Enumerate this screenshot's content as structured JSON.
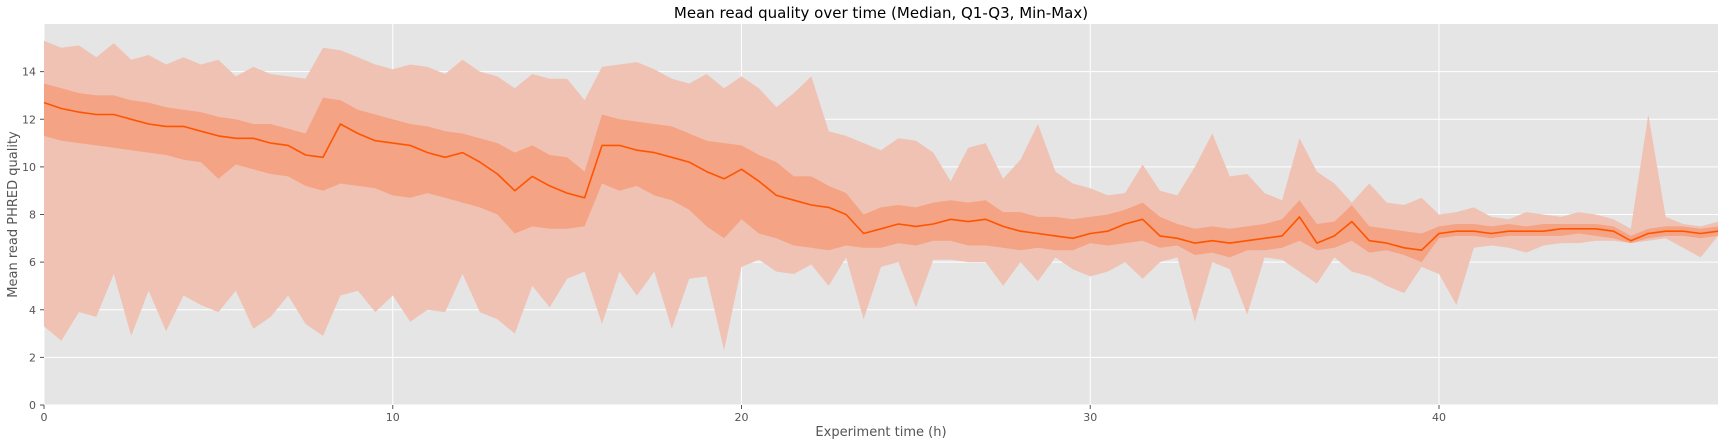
{
  "chart_data": {
    "type": "area",
    "title": "Mean read quality over time (Median, Q1-Q3, Min-Max)",
    "xlabel": "Experiment time (h)",
    "ylabel": "Mean read PHRED quality",
    "xlim": [
      0,
      48
    ],
    "ylim": [
      0,
      16
    ],
    "xticks": [
      0,
      10,
      20,
      30,
      40
    ],
    "yticks": [
      0,
      2,
      4,
      6,
      8,
      10,
      12,
      14
    ],
    "grid": true,
    "background": "#e5e5e5",
    "grid_color": "#ffffff",
    "colors": {
      "median": "#ff5500",
      "iqr_band": "#f4a07e",
      "minmax_band": "#f0c0b0"
    },
    "x": [
      0,
      0.5,
      1,
      1.5,
      2,
      2.5,
      3,
      3.5,
      4,
      4.5,
      5,
      5.5,
      6,
      6.5,
      7,
      7.5,
      8,
      8.5,
      9,
      9.5,
      10,
      10.5,
      11,
      11.5,
      12,
      12.5,
      13,
      13.5,
      14,
      14.5,
      15,
      15.5,
      16,
      16.5,
      17,
      17.5,
      18,
      18.5,
      19,
      19.5,
      20,
      20.5,
      21,
      21.5,
      22,
      22.5,
      23,
      23.5,
      24,
      24.5,
      25,
      25.5,
      26,
      26.5,
      27,
      27.5,
      28,
      28.5,
      29,
      29.5,
      30,
      30.5,
      31,
      31.5,
      32,
      32.5,
      33,
      33.5,
      34,
      34.5,
      35,
      35.5,
      36,
      36.5,
      37,
      37.5,
      38,
      38.5,
      39,
      39.5,
      40,
      40.5,
      41,
      41.5,
      42,
      42.5,
      43,
      43.5,
      44,
      44.5,
      45,
      45.5,
      46,
      46.5,
      47,
      47.5,
      48
    ],
    "series": [
      {
        "name": "Median",
        "values": [
          12.7,
          12.45,
          12.3,
          12.2,
          12.2,
          12.0,
          11.8,
          11.7,
          11.7,
          11.5,
          11.3,
          11.2,
          11.2,
          11.0,
          10.9,
          10.5,
          10.4,
          11.8,
          11.4,
          11.1,
          11.0,
          10.9,
          10.6,
          10.4,
          10.6,
          10.2,
          9.7,
          9.0,
          9.6,
          9.2,
          8.9,
          8.7,
          10.9,
          10.9,
          10.7,
          10.6,
          10.4,
          10.2,
          9.8,
          9.5,
          9.9,
          9.4,
          8.8,
          8.6,
          8.4,
          8.3,
          8.0,
          7.2,
          7.4,
          7.6,
          7.5,
          7.6,
          7.8,
          7.7,
          7.8,
          7.5,
          7.3,
          7.2,
          7.1,
          7.0,
          7.2,
          7.3,
          7.6,
          7.8,
          7.1,
          7.0,
          6.8,
          6.9,
          6.8,
          6.9,
          7.0,
          7.1,
          7.9,
          6.8,
          7.1,
          7.7,
          6.9,
          6.8,
          6.6,
          6.5,
          7.2,
          7.3,
          7.3,
          7.2,
          7.3,
          7.3,
          7.3,
          7.4,
          7.4,
          7.4,
          7.3,
          6.9,
          7.2,
          7.3,
          7.3,
          7.2,
          7.3
        ]
      },
      {
        "name": "Q1",
        "values": [
          11.3,
          11.1,
          11.0,
          10.9,
          10.8,
          10.7,
          10.6,
          10.5,
          10.3,
          10.2,
          9.5,
          10.1,
          9.9,
          9.7,
          9.6,
          9.2,
          9.0,
          9.3,
          9.2,
          9.1,
          8.8,
          8.7,
          8.9,
          8.7,
          8.5,
          8.3,
          8.0,
          7.2,
          7.5,
          7.4,
          7.4,
          7.5,
          9.3,
          9.0,
          9.2,
          8.8,
          8.6,
          8.2,
          7.5,
          7.0,
          7.8,
          7.2,
          7.0,
          6.7,
          6.6,
          6.5,
          6.7,
          6.6,
          6.6,
          6.8,
          6.7,
          6.9,
          6.9,
          6.7,
          6.7,
          6.6,
          6.5,
          6.6,
          6.5,
          6.5,
          6.8,
          6.7,
          6.8,
          6.9,
          6.6,
          6.7,
          6.3,
          6.4,
          6.2,
          6.5,
          6.5,
          6.6,
          6.9,
          6.5,
          6.6,
          6.9,
          6.4,
          6.5,
          6.3,
          6.0,
          7.0,
          7.1,
          7.1,
          7.0,
          7.1,
          7.1,
          7.1,
          7.1,
          7.2,
          7.1,
          7.0,
          6.8,
          7.0,
          7.1,
          7.1,
          7.0,
          7.1
        ]
      },
      {
        "name": "Q3",
        "values": [
          13.5,
          13.3,
          13.1,
          13.0,
          13.0,
          12.8,
          12.7,
          12.5,
          12.4,
          12.3,
          12.1,
          12.0,
          11.8,
          11.8,
          11.6,
          11.4,
          12.9,
          12.8,
          12.4,
          12.2,
          12.0,
          11.8,
          11.7,
          11.5,
          11.4,
          11.2,
          11.0,
          10.6,
          10.9,
          10.5,
          10.4,
          9.8,
          12.2,
          12.0,
          11.9,
          11.8,
          11.7,
          11.4,
          11.1,
          11.0,
          10.9,
          10.5,
          10.2,
          9.6,
          9.6,
          9.2,
          8.9,
          8.0,
          8.3,
          8.4,
          8.3,
          8.5,
          8.6,
          8.5,
          8.6,
          8.1,
          8.1,
          7.9,
          7.9,
          7.8,
          7.9,
          8.0,
          8.2,
          8.5,
          7.9,
          7.6,
          7.4,
          7.5,
          7.4,
          7.5,
          7.6,
          7.8,
          8.6,
          7.6,
          7.7,
          8.4,
          7.5,
          7.4,
          7.3,
          7.2,
          7.5,
          7.6,
          7.6,
          7.5,
          7.6,
          7.5,
          7.6,
          7.6,
          7.6,
          7.6,
          7.5,
          7.1,
          7.4,
          7.5,
          7.5,
          7.4,
          7.5
        ]
      },
      {
        "name": "Min",
        "values": [
          3.3,
          2.7,
          3.9,
          3.7,
          5.5,
          2.9,
          4.8,
          3.1,
          4.6,
          4.2,
          3.9,
          4.8,
          3.2,
          3.7,
          4.6,
          3.4,
          2.9,
          4.6,
          4.8,
          3.9,
          4.6,
          3.5,
          4.0,
          3.9,
          5.5,
          3.9,
          3.6,
          3.0,
          5.0,
          4.1,
          5.3,
          5.6,
          3.4,
          5.6,
          4.6,
          5.6,
          3.2,
          5.3,
          5.4,
          2.3,
          5.8,
          6.1,
          5.6,
          5.5,
          5.9,
          5.0,
          6.2,
          3.6,
          5.8,
          6.0,
          4.1,
          6.1,
          6.1,
          6.0,
          6.0,
          5.0,
          6.0,
          5.2,
          6.2,
          5.7,
          5.4,
          5.6,
          6.0,
          5.3,
          6.0,
          6.2,
          3.5,
          6.0,
          5.7,
          3.8,
          6.2,
          6.1,
          5.6,
          5.1,
          6.2,
          5.6,
          5.4,
          5.0,
          4.7,
          5.8,
          5.5,
          4.2,
          6.6,
          6.7,
          6.6,
          6.4,
          6.7,
          6.8,
          6.8,
          6.9,
          6.9,
          6.8,
          6.9,
          7.0,
          6.6,
          6.2,
          7.1
        ]
      },
      {
        "name": "Max",
        "values": [
          15.3,
          15.0,
          15.1,
          14.6,
          15.2,
          14.5,
          14.7,
          14.3,
          14.6,
          14.3,
          14.5,
          13.8,
          14.2,
          13.9,
          13.8,
          13.7,
          15.0,
          14.9,
          14.6,
          14.3,
          14.1,
          14.3,
          14.2,
          13.9,
          14.5,
          14.0,
          13.8,
          13.3,
          13.9,
          13.7,
          13.7,
          12.8,
          14.2,
          14.3,
          14.4,
          14.1,
          13.7,
          13.5,
          13.9,
          13.3,
          13.8,
          13.3,
          12.5,
          13.1,
          13.8,
          11.5,
          11.3,
          11.0,
          10.7,
          11.2,
          11.1,
          10.6,
          9.4,
          10.8,
          11.0,
          9.5,
          10.3,
          11.8,
          9.8,
          9.3,
          9.1,
          8.8,
          8.9,
          10.1,
          9.0,
          8.8,
          10.0,
          11.4,
          9.6,
          9.7,
          8.9,
          8.6,
          11.2,
          9.8,
          9.3,
          8.5,
          9.3,
          8.5,
          8.4,
          8.7,
          8.0,
          8.1,
          8.3,
          7.9,
          7.8,
          8.1,
          8.0,
          7.9,
          8.1,
          8.0,
          7.8,
          7.4,
          12.2,
          7.9,
          7.6,
          7.5,
          7.7
        ]
      }
    ]
  }
}
